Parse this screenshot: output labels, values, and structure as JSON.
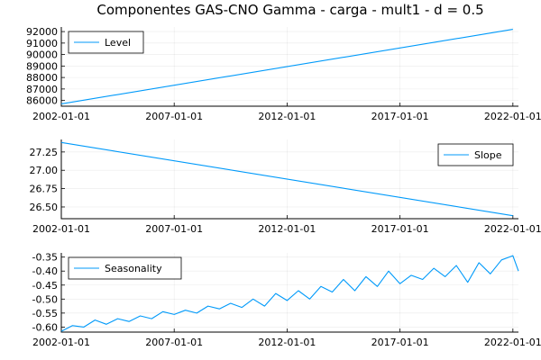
{
  "figure_title": "Componentes GAS-CNO Gamma - carga - mult1 - d = 0.5",
  "colors": {
    "series": "#009AFA"
  },
  "chart_data": [
    {
      "type": "line",
      "legend_position": "top-left",
      "grid": true,
      "x_range": [
        "2002-01-01",
        "2022-04-01"
      ],
      "xticks": [
        "2002-01-01",
        "2007-01-01",
        "2012-01-01",
        "2017-01-01",
        "2022-01-01"
      ],
      "ylim": [
        85500,
        92400
      ],
      "yticks": [
        86000,
        87000,
        88000,
        89000,
        90000,
        91000,
        92000
      ],
      "ytick_labels": [
        "86000",
        "87000",
        "88000",
        "89000",
        "90000",
        "91000",
        "92000"
      ],
      "series": [
        {
          "name": "Level",
          "x": [
            "2002-01-01",
            "2022-01-01"
          ],
          "y": [
            85700,
            92200
          ]
        }
      ]
    },
    {
      "type": "line",
      "legend_position": "top-right",
      "grid": true,
      "x_range": [
        "2002-01-01",
        "2022-04-01"
      ],
      "xticks": [
        "2002-01-01",
        "2007-01-01",
        "2012-01-01",
        "2017-01-01",
        "2022-01-01"
      ],
      "ylim": [
        26.34,
        27.42
      ],
      "yticks": [
        26.5,
        26.75,
        27.0,
        27.25
      ],
      "ytick_labels": [
        "26.50",
        "26.75",
        "27.00",
        "27.25"
      ],
      "series": [
        {
          "name": "Slope",
          "x": [
            "2002-01-01",
            "2022-01-01"
          ],
          "y": [
            27.38,
            26.38
          ]
        }
      ]
    },
    {
      "type": "line",
      "legend_position": "top-left",
      "grid": true,
      "x_range": [
        "2002-01-01",
        "2022-04-01"
      ],
      "xticks": [
        "2002-01-01",
        "2007-01-01",
        "2012-01-01",
        "2017-01-01",
        "2022-01-01"
      ],
      "ylim": [
        -0.618,
        -0.335
      ],
      "yticks": [
        -0.6,
        -0.55,
        -0.5,
        -0.45,
        -0.4,
        -0.35
      ],
      "ytick_labels": [
        "-0.60",
        "-0.55",
        "-0.50",
        "-0.45",
        "-0.40",
        "-0.35"
      ],
      "series": [
        {
          "name": "Seasonality",
          "x": [
            "2002-01-01",
            "2002-07-01",
            "2003-01-01",
            "2003-07-01",
            "2004-01-01",
            "2004-07-01",
            "2005-01-01",
            "2005-07-01",
            "2006-01-01",
            "2006-07-01",
            "2007-01-01",
            "2007-07-01",
            "2008-01-01",
            "2008-07-01",
            "2009-01-01",
            "2009-07-01",
            "2010-01-01",
            "2010-07-01",
            "2011-01-01",
            "2011-07-01",
            "2012-01-01",
            "2012-07-01",
            "2013-01-01",
            "2013-07-01",
            "2014-01-01",
            "2014-07-01",
            "2015-01-01",
            "2015-07-01",
            "2016-01-01",
            "2016-07-01",
            "2017-01-01",
            "2017-07-01",
            "2018-01-01",
            "2018-07-01",
            "2019-01-01",
            "2019-07-01",
            "2020-01-01",
            "2020-07-01",
            "2021-01-01",
            "2021-07-01",
            "2022-01-01",
            "2022-04-01"
          ],
          "y": [
            -0.615,
            -0.595,
            -0.6,
            -0.575,
            -0.59,
            -0.57,
            -0.58,
            -0.56,
            -0.57,
            -0.545,
            -0.555,
            -0.54,
            -0.55,
            -0.525,
            -0.535,
            -0.515,
            -0.53,
            -0.5,
            -0.525,
            -0.48,
            -0.505,
            -0.47,
            -0.5,
            -0.455,
            -0.475,
            -0.43,
            -0.47,
            -0.42,
            -0.455,
            -0.4,
            -0.445,
            -0.415,
            -0.43,
            -0.39,
            -0.42,
            -0.38,
            -0.44,
            -0.37,
            -0.41,
            -0.36,
            -0.345,
            -0.4
          ]
        }
      ]
    }
  ]
}
